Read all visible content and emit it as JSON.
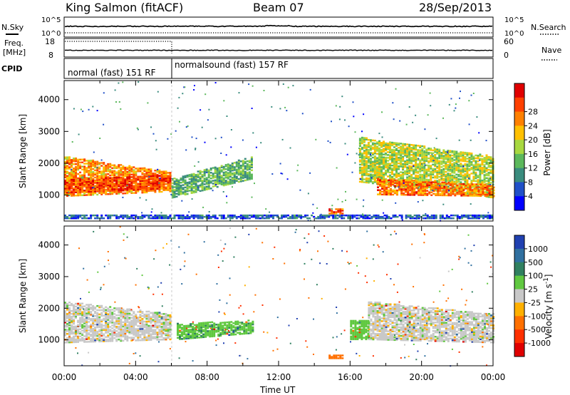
{
  "header": {
    "station": "King Salmon (fitACF)",
    "beam": "Beam 07",
    "date": "28/Sep/2013"
  },
  "strip_labels": {
    "nsky": "N.Sky",
    "nsearch": "N.Search",
    "freq_line1": "Freq.",
    "freq_line2": "[MHz]",
    "nave": "Nave",
    "cpid": "CPID",
    "noise_ticks": [
      "10^5",
      "10^0"
    ],
    "freq_ticks": [
      "18",
      "8"
    ],
    "nave_ticks": [
      "60",
      "0"
    ]
  },
  "cpid_segments": [
    {
      "label": "normal (fast) 151 RF",
      "start_hour": 0,
      "end_hour": 6
    },
    {
      "label": "normalsound (fast) 157 RF",
      "start_hour": 6,
      "end_hour": 24
    }
  ],
  "chart_data": [
    {
      "type": "heatmap",
      "title": "",
      "ylabel": "Slant Range [km]",
      "xlabel": "",
      "xlim": [
        0,
        24
      ],
      "ylim": [
        180,
        4600
      ],
      "y_ticks": [
        "1000",
        "2000",
        "3000",
        "4000"
      ],
      "colorbar": {
        "label": "Power [dB]",
        "ticks": [
          "4",
          "8",
          "12",
          "16",
          "20",
          "24",
          "28"
        ],
        "range": [
          0,
          32
        ],
        "colors": [
          "#0000ff",
          "#2050c8",
          "#3a8c7e",
          "#5cb85c",
          "#a8d840",
          "#ffc000",
          "#ff8000",
          "#ff4000",
          "#e00000"
        ]
      },
      "echo_regions": [
        {
          "name": "0-6h band 900-2300 km",
          "start": 0.0,
          "end": 6.0,
          "r1a": 950,
          "r1b": 1100,
          "r2a": 2200,
          "r2b": 1700,
          "value": 22
        },
        {
          "name": "0-6h core",
          "start": 0.0,
          "end": 6.0,
          "r1a": 1050,
          "r1b": 1200,
          "r2a": 1500,
          "r2b": 1600,
          "value": 27
        },
        {
          "name": "6-10h band",
          "start": 6.0,
          "end": 10.5,
          "r1a": 900,
          "r1b": 1500,
          "r2a": 1500,
          "r2b": 2200,
          "value": 12
        },
        {
          "name": "16-24h band",
          "start": 16.5,
          "end": 24.0,
          "r1a": 1400,
          "r1b": 900,
          "r2a": 2800,
          "r2b": 2200,
          "value": 16
        },
        {
          "name": "18-24h core",
          "start": 17.5,
          "end": 24.0,
          "r1a": 1000,
          "r1b": 950,
          "r2a": 1500,
          "r2b": 1300,
          "value": 24
        },
        {
          "name": "ground scatter floor",
          "start": 0.0,
          "end": 24.0,
          "r1a": 250,
          "r1b": 250,
          "r2a": 380,
          "r2b": 380,
          "value": 6
        },
        {
          "name": "15h blob",
          "start": 14.8,
          "end": 15.6,
          "r1a": 400,
          "r1b": 400,
          "r2a": 550,
          "r2b": 550,
          "value": 26
        }
      ]
    },
    {
      "type": "heatmap",
      "title": "",
      "ylabel": "Slant Range [km]",
      "xlabel": "Time UT",
      "xlim": [
        0,
        24
      ],
      "ylim": [
        180,
        4600
      ],
      "x_ticks": [
        "00:00",
        "04:00",
        "08:00",
        "12:00",
        "16:00",
        "20:00",
        "00:00"
      ],
      "y_ticks": [
        "1000",
        "2000",
        "3000",
        "4000"
      ],
      "colorbar": {
        "label": "Velocity [m s^-1]",
        "ticks": [
          "1000",
          "500",
          "100",
          "25",
          "-25",
          "-100",
          "-500",
          "-1000"
        ],
        "colors": [
          "#2040b0",
          "#3070a0",
          "#308060",
          "#60c840",
          "#c8c8c8",
          "#ffb000",
          "#ff7000",
          "#ff3000",
          "#e00000"
        ]
      },
      "echo_regions": [
        {
          "name": "0-6h gray",
          "start": 0.0,
          "end": 6.0,
          "r1a": 900,
          "r1b": 1000,
          "r2a": 2200,
          "r2b": 1800,
          "value": 0
        },
        {
          "name": "6-9h green",
          "start": 6.3,
          "end": 10.5,
          "r1a": 1000,
          "r1b": 1200,
          "r2a": 1500,
          "r2b": 1600,
          "value": 80
        },
        {
          "name": "16-24h gray",
          "start": 17.0,
          "end": 24.0,
          "r1a": 1000,
          "r1b": 900,
          "r2a": 2200,
          "r2b": 1800,
          "value": 0
        },
        {
          "name": "16-17h green streak",
          "start": 16.0,
          "end": 17.0,
          "r1a": 1000,
          "r1b": 1000,
          "r2a": 1600,
          "r2b": 1600,
          "value": 60
        },
        {
          "name": "15h blob",
          "start": 14.8,
          "end": 15.6,
          "r1a": 400,
          "r1b": 400,
          "r2a": 520,
          "r2b": 520,
          "value": -300
        }
      ]
    }
  ]
}
